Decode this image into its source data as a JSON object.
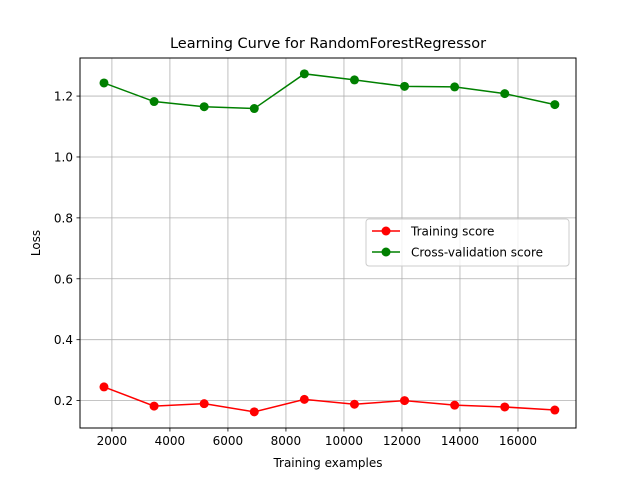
{
  "chart_data": {
    "type": "line",
    "title": "Learning Curve for RandomForestRegressor",
    "xlabel": "Training examples",
    "ylabel": "Loss",
    "xlim": [
      900,
      18000
    ],
    "ylim": [
      0.11,
      1.325
    ],
    "xticks": [
      2000,
      4000,
      6000,
      8000,
      10000,
      12000,
      14000,
      16000
    ],
    "xtick_labels": [
      "2000",
      "4000",
      "6000",
      "8000",
      "10000",
      "12000",
      "14000",
      "16000"
    ],
    "yticks": [
      0.2,
      0.4,
      0.6,
      0.8,
      1.0,
      1.2
    ],
    "ytick_labels": [
      "0.2",
      "0.4",
      "0.6",
      "0.8",
      "1.0",
      "1.2"
    ],
    "grid": true,
    "legend_position": "center-right",
    "x": [
      1727,
      3454,
      5181,
      6908,
      8635,
      10362,
      12089,
      13816,
      15543,
      17270
    ],
    "series": [
      {
        "name": "Training score",
        "color": "#ff0000",
        "values": [
          0.245,
          0.182,
          0.19,
          0.163,
          0.204,
          0.188,
          0.2,
          0.185,
          0.179,
          0.169
        ]
      },
      {
        "name": "Cross-validation score",
        "color": "#008000",
        "values": [
          1.243,
          1.182,
          1.165,
          1.159,
          1.273,
          1.253,
          1.232,
          1.23,
          1.208,
          1.172
        ]
      }
    ]
  }
}
